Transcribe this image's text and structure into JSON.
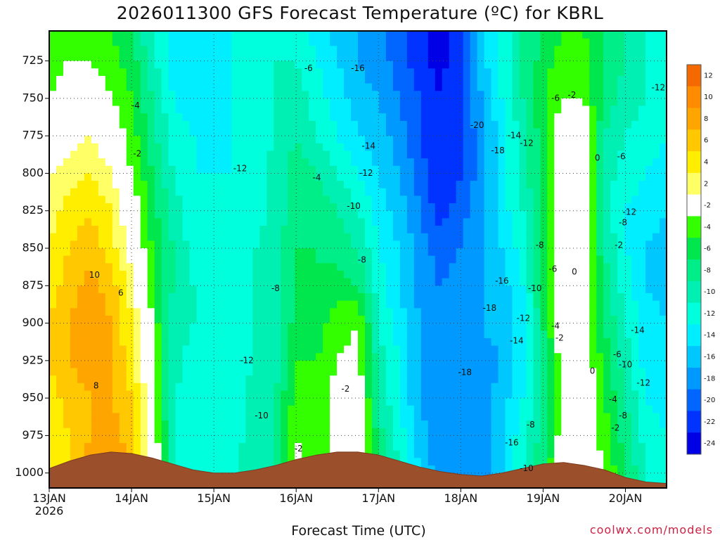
{
  "title": "2026011300 GFS Forecast Temperature (ºC) for KBRL",
  "credit": "coolwx.com/models",
  "chart_data": {
    "type": "heatmap",
    "title": "2026011300 GFS Forecast Temperature (ºC) for KBRL",
    "xlabel": "Forecast Time (UTC)",
    "ylabel": "",
    "x_ticks": [
      "13JAN",
      "14JAN",
      "15JAN",
      "16JAN",
      "17JAN",
      "18JAN",
      "19JAN",
      "20JAN"
    ],
    "x_sublabel": "2026",
    "x_range_days": [
      0,
      7.5
    ],
    "y_ticks": [
      725,
      750,
      775,
      800,
      825,
      850,
      875,
      900,
      925,
      950,
      975,
      1000
    ],
    "y_range_hPa": [
      1010,
      705
    ],
    "grid": true,
    "colorbar": {
      "levels": [
        12,
        10,
        8,
        6,
        4,
        2,
        -2,
        -4,
        -6,
        -8,
        -10,
        -12,
        -14,
        -16,
        -18,
        -20,
        -22,
        -24
      ],
      "colors": [
        "#f56a00",
        "#ff8c00",
        "#ffa500",
        "#ffc800",
        "#ffee00",
        "#ffff66",
        "#ffffff",
        "#33ff00",
        "#00e64d",
        "#00ee88",
        "#00f0b4",
        "#00ffdd",
        "#00eeff",
        "#00c8ff",
        "#0099ff",
        "#0066ff",
        "#0033ff",
        "#0000e6"
      ]
    },
    "time_days": [
      0,
      0.25,
      0.5,
      0.75,
      1,
      1.25,
      1.5,
      1.75,
      2,
      2.25,
      2.5,
      2.75,
      3,
      3.25,
      3.5,
      3.75,
      4,
      4.25,
      4.5,
      4.75,
      5,
      5.25,
      5.5,
      5.75,
      6,
      6.25,
      6.5,
      6.75,
      7,
      7.25,
      7.5
    ],
    "pressure_levels": [
      1000,
      975,
      950,
      925,
      900,
      875,
      850,
      825,
      800,
      775,
      750,
      725,
      705
    ],
    "temperature_grid": [
      [
        4,
        6,
        9,
        9,
        8,
        2,
        -10,
        -11,
        -11,
        -10,
        -8,
        -8,
        -1,
        -4,
        0,
        2,
        -6,
        -10,
        -14,
        -17,
        -18,
        -17,
        -14,
        -10,
        -6,
        0,
        0,
        -2,
        -6,
        -10,
        -12
      ],
      [
        4,
        6,
        8,
        9,
        7,
        1,
        -10,
        -11,
        -12,
        -11,
        -9,
        -8,
        -2,
        -4,
        0,
        1,
        -7,
        -11,
        -15,
        -18,
        -18,
        -17,
        -14,
        -11,
        -7,
        0,
        0,
        -3,
        -7,
        -11,
        -12
      ],
      [
        5,
        7,
        8,
        8,
        6,
        0,
        -10,
        -11,
        -12,
        -11,
        -9,
        -8,
        -3,
        -4,
        -1,
        0,
        -8,
        -12,
        -16,
        -18,
        -18,
        -17,
        -15,
        -12,
        -8,
        0,
        0,
        -4,
        -8,
        -12,
        -13
      ],
      [
        6,
        8,
        9,
        8,
        5,
        -1,
        -9,
        -11,
        -12,
        -11,
        -10,
        -9,
        -4,
        -4,
        -2,
        -1,
        -9,
        -12,
        -16,
        -18,
        -18,
        -17,
        -16,
        -13,
        -8,
        0,
        0,
        -5,
        -9,
        -13,
        -14
      ],
      [
        6,
        8,
        10,
        8,
        4,
        -2,
        -9,
        -10,
        -11,
        -11,
        -10,
        -9,
        -5,
        -5,
        -3,
        -2,
        -10,
        -13,
        -16,
        -18,
        -17,
        -16,
        -15,
        -13,
        -6,
        1,
        0,
        -6,
        -10,
        -13,
        -14
      ],
      [
        5,
        7,
        9,
        7,
        3,
        -3,
        -8,
        -10,
        -11,
        -11,
        -10,
        -9,
        -6,
        -6,
        -5,
        -6,
        -11,
        -14,
        -17,
        -18,
        -17,
        -16,
        -15,
        -12,
        -6,
        1,
        0,
        -7,
        -11,
        -14,
        -15
      ],
      [
        4,
        6,
        7,
        5,
        1,
        -4,
        -8,
        -11,
        -12,
        -11,
        -10,
        -9,
        -6,
        -6,
        -7,
        -8,
        -12,
        -14,
        -17,
        -19,
        -18,
        -16,
        -14,
        -11,
        -6,
        1,
        0,
        -8,
        -12,
        -14,
        -15
      ],
      [
        3,
        5,
        6,
        4,
        0,
        -5,
        -9,
        -11,
        -12,
        -12,
        -11,
        -9,
        -7,
        -7,
        -8,
        -10,
        -13,
        -15,
        -18,
        -21,
        -19,
        -16,
        -13,
        -10,
        -6,
        1,
        0,
        -9,
        -12,
        -13,
        -14
      ],
      [
        2,
        3,
        4,
        2,
        -2,
        -6,
        -10,
        -12,
        -12,
        -12,
        -11,
        -9,
        -7,
        -8,
        -10,
        -12,
        -14,
        -16,
        -19,
        -22,
        -20,
        -17,
        -13,
        -9,
        -5,
        2,
        0,
        -9,
        -11,
        -12,
        -13
      ],
      [
        0,
        1,
        2,
        0,
        -3,
        -7,
        -11,
        -12,
        -13,
        -12,
        -11,
        -10,
        -8,
        -10,
        -12,
        -14,
        -15,
        -17,
        -20,
        -22,
        -20,
        -17,
        -13,
        -9,
        -5,
        1,
        0,
        -8,
        -10,
        -11,
        -12
      ],
      [
        -2,
        0,
        0,
        -2,
        -4,
        -8,
        -12,
        -13,
        -13,
        -12,
        -11,
        -10,
        -9,
        -11,
        -13,
        -15,
        -16,
        -18,
        -20,
        -22,
        -20,
        -16,
        -12,
        -8,
        -4,
        -2,
        -2,
        -7,
        -9,
        -10,
        -11
      ],
      [
        -3,
        -2,
        -2,
        -3,
        -5,
        -9,
        -13,
        -14,
        -13,
        -12,
        -11,
        -10,
        -10,
        -12,
        -14,
        -16,
        -17,
        -19,
        -21,
        -23,
        -20,
        -15,
        -11,
        -8,
        -5,
        -3,
        -3,
        -6,
        -8,
        -10,
        -11
      ],
      [
        -4,
        -3,
        -3,
        -4,
        -6,
        -10,
        -13,
        -14,
        -13,
        -12,
        -12,
        -11,
        -11,
        -13,
        -15,
        -16,
        -17,
        -19,
        -21,
        -23,
        -20,
        -15,
        -11,
        -8,
        -6,
        -4,
        -4,
        -6,
        -8,
        -10,
        -11
      ]
    ],
    "ground_surface_hPa": [
      997,
      992,
      988,
      986,
      987,
      990,
      994,
      998,
      1000,
      1000,
      998,
      995,
      991,
      988,
      986,
      986,
      988,
      992,
      996,
      999,
      1001,
      1002,
      1000,
      997,
      994,
      993,
      995,
      998,
      1003,
      1006,
      1007
    ],
    "contour_labels": [
      {
        "text": "10",
        "day": 0.55,
        "hPa": 868
      },
      {
        "text": "6",
        "day": 0.87,
        "hPa": 880
      },
      {
        "text": "8",
        "day": 0.57,
        "hPa": 942
      },
      {
        "text": "-4",
        "day": 1.05,
        "hPa": 755
      },
      {
        "text": "-2",
        "day": 1.07,
        "hPa": 787
      },
      {
        "text": "-12",
        "day": 2.32,
        "hPa": 797
      },
      {
        "text": "-8",
        "day": 2.75,
        "hPa": 877
      },
      {
        "text": "-12",
        "day": 2.4,
        "hPa": 925
      },
      {
        "text": "-10",
        "day": 2.58,
        "hPa": 962
      },
      {
        "text": "-6",
        "day": 3.15,
        "hPa": 730
      },
      {
        "text": "-4",
        "day": 3.25,
        "hPa": 803
      },
      {
        "text": "-2",
        "day": 3.03,
        "hPa": 984
      },
      {
        "text": "-16",
        "day": 3.75,
        "hPa": 730
      },
      {
        "text": "-14",
        "day": 3.88,
        "hPa": 782
      },
      {
        "text": "-12",
        "day": 3.85,
        "hPa": 800
      },
      {
        "text": "-10",
        "day": 3.7,
        "hPa": 822
      },
      {
        "text": "-8",
        "day": 3.8,
        "hPa": 858
      },
      {
        "text": "-2",
        "day": 3.6,
        "hPa": 944
      },
      {
        "text": "-20",
        "day": 5.2,
        "hPa": 768
      },
      {
        "text": "-18",
        "day": 5.45,
        "hPa": 785
      },
      {
        "text": "-14",
        "day": 5.65,
        "hPa": 775
      },
      {
        "text": "-12",
        "day": 5.8,
        "hPa": 780
      },
      {
        "text": "-16",
        "day": 5.5,
        "hPa": 872
      },
      {
        "text": "-18",
        "day": 5.35,
        "hPa": 890
      },
      {
        "text": "-12",
        "day": 5.76,
        "hPa": 897
      },
      {
        "text": "-10",
        "day": 5.9,
        "hPa": 877
      },
      {
        "text": "-8",
        "day": 5.96,
        "hPa": 848
      },
      {
        "text": "-6",
        "day": 6.15,
        "hPa": 750
      },
      {
        "text": "-2",
        "day": 6.35,
        "hPa": 748
      },
      {
        "text": "0",
        "day": 6.66,
        "hPa": 790
      },
      {
        "text": "-6",
        "day": 6.95,
        "hPa": 789
      },
      {
        "text": "-12",
        "day": 7.05,
        "hPa": 826
      },
      {
        "text": "-8",
        "day": 6.97,
        "hPa": 833
      },
      {
        "text": "-2",
        "day": 6.92,
        "hPa": 848
      },
      {
        "text": "-6",
        "day": 6.12,
        "hPa": 864
      },
      {
        "text": "0",
        "day": 6.38,
        "hPa": 866
      },
      {
        "text": "-4",
        "day": 6.15,
        "hPa": 902
      },
      {
        "text": "-2",
        "day": 6.2,
        "hPa": 910
      },
      {
        "text": "0",
        "day": 6.6,
        "hPa": 932
      },
      {
        "text": "-14",
        "day": 5.68,
        "hPa": 912
      },
      {
        "text": "-18",
        "day": 5.05,
        "hPa": 933
      },
      {
        "text": "-16",
        "day": 5.62,
        "hPa": 980
      },
      {
        "text": "-8",
        "day": 5.85,
        "hPa": 968
      },
      {
        "text": "-10",
        "day": 5.8,
        "hPa": 997
      },
      {
        "text": "-6",
        "day": 6.9,
        "hPa": 921
      },
      {
        "text": "-10",
        "day": 7.0,
        "hPa": 928
      },
      {
        "text": "-4",
        "day": 6.85,
        "hPa": 951
      },
      {
        "text": "-8",
        "day": 6.97,
        "hPa": 962
      },
      {
        "text": "-2",
        "day": 6.88,
        "hPa": 970
      },
      {
        "text": "-12",
        "day": 7.22,
        "hPa": 940
      },
      {
        "text": "-14",
        "day": 7.15,
        "hPa": 905
      },
      {
        "text": "-12",
        "day": 7.4,
        "hPa": 743
      }
    ]
  }
}
